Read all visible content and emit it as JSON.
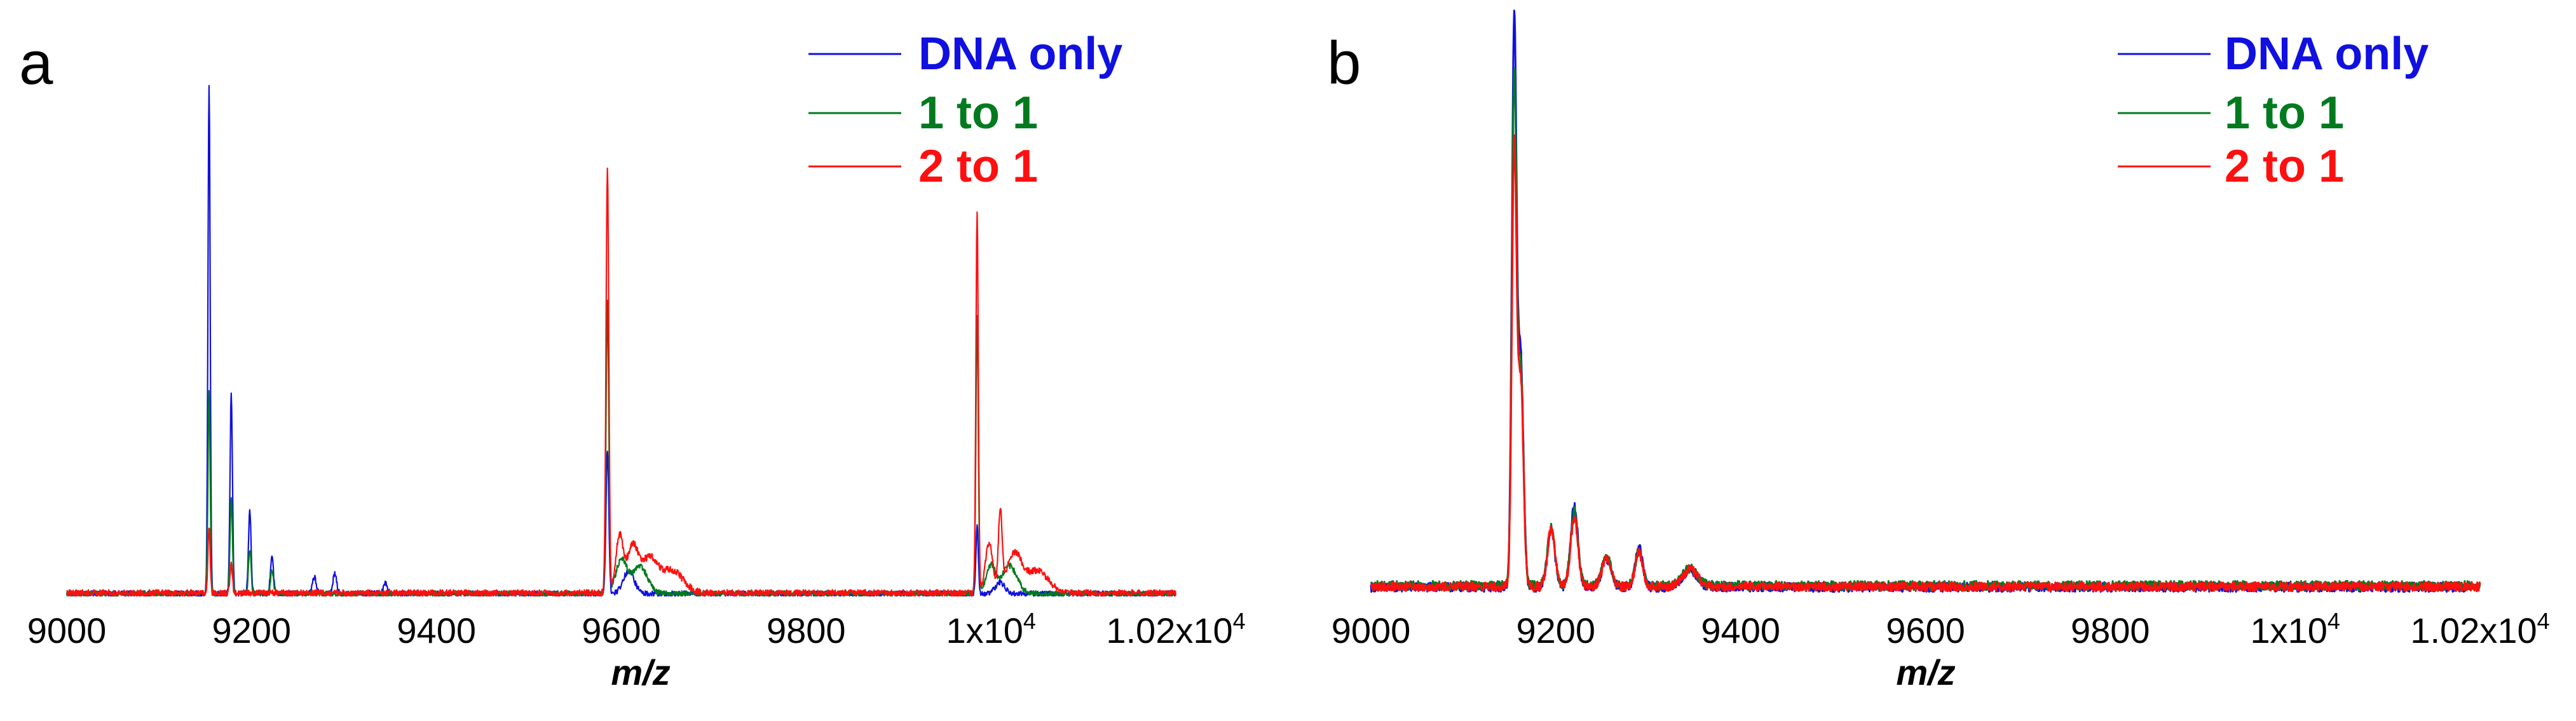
{
  "colors": {
    "DNA only": "#1010e0",
    "1 to 1": "#007a1e",
    "2 to 1": "#ff1010"
  },
  "chart_data": [
    {
      "panel": "a",
      "type": "line",
      "xlabel": "m/z",
      "ylabel": "",
      "xlim": [
        9000,
        10200
      ],
      "ylim": [
        0,
        1
      ],
      "grid": false,
      "legend_position": "top-right",
      "x_ticks": [
        {
          "value": 9000,
          "label": "9000"
        },
        {
          "value": 9200,
          "label": "9200"
        },
        {
          "value": 9400,
          "label": "9400"
        },
        {
          "value": 9600,
          "label": "9600"
        },
        {
          "value": 9800,
          "label": "9800"
        },
        {
          "value": 10000,
          "label": "1x10",
          "sup": "4"
        },
        {
          "value": 10200,
          "label": "1.02x10",
          "sup": "4"
        }
      ],
      "series": [
        {
          "name": "DNA only",
          "baseline": 0.004,
          "noise": 0.005,
          "peaks": [
            [
              9154,
              0.91,
              1.2
            ],
            [
              9178,
              0.36,
              1.3
            ],
            [
              9198,
              0.15,
              1.4
            ],
            [
              9222,
              0.07,
              1.6
            ],
            [
              9268,
              0.03,
              2
            ],
            [
              9290,
              0.035,
              2
            ],
            [
              9345,
              0.02,
              2
            ],
            [
              9585,
              0.26,
              1.5
            ],
            [
              9608,
              0.04,
              6
            ],
            [
              9985,
              0.12,
              1.3
            ],
            [
              10010,
              0.02,
              5
            ]
          ]
        },
        {
          "name": "1 to 1",
          "baseline": 0.004,
          "noise": 0.005,
          "peaks": [
            [
              9154,
              0.36,
              1.2
            ],
            [
              9178,
              0.17,
              1.3
            ],
            [
              9198,
              0.08,
              1.4
            ],
            [
              9222,
              0.04,
              1.6
            ],
            [
              9585,
              0.52,
              1.5
            ],
            [
              9600,
              0.06,
              6
            ],
            [
              9620,
              0.05,
              8
            ],
            [
              9985,
              0.5,
              1.3
            ],
            [
              10000,
              0.05,
              5
            ],
            [
              10020,
              0.05,
              8
            ]
          ]
        },
        {
          "name": "2 to 1",
          "baseline": 0.005,
          "noise": 0.006,
          "peaks": [
            [
              9154,
              0.12,
              1.2
            ],
            [
              9178,
              0.05,
              1.3
            ],
            [
              9585,
              0.76,
              1.5
            ],
            [
              9598,
              0.1,
              4
            ],
            [
              9612,
              0.08,
              6
            ],
            [
              9630,
              0.06,
              9
            ],
            [
              9655,
              0.04,
              12
            ],
            [
              9985,
              0.68,
              1.3
            ],
            [
              9998,
              0.09,
              4
            ],
            [
              10010,
              0.14,
              2
            ],
            [
              10025,
              0.07,
              8
            ],
            [
              10050,
              0.04,
              12
            ]
          ]
        }
      ]
    },
    {
      "panel": "b",
      "type": "line",
      "xlabel": "m/z",
      "ylabel": "",
      "xlim": [
        9000,
        10200
      ],
      "ylim": [
        0,
        1
      ],
      "grid": false,
      "legend_position": "top-right",
      "x_ticks": [
        {
          "value": 9000,
          "label": "9000"
        },
        {
          "value": 9200,
          "label": "9200"
        },
        {
          "value": 9400,
          "label": "9400"
        },
        {
          "value": 9600,
          "label": "9600"
        },
        {
          "value": 9800,
          "label": "9800"
        },
        {
          "value": 10000,
          "label": "1x10",
          "sup": "4"
        },
        {
          "value": 10200,
          "label": "1.02x10",
          "sup": "4"
        }
      ],
      "series": [
        {
          "name": "DNA only",
          "baseline": 0.015,
          "noise": 0.008,
          "peaks": [
            [
              9155,
              0.98,
              2.5
            ],
            [
              9162,
              0.4,
              3
            ],
            [
              9195,
              0.1,
              4
            ],
            [
              9220,
              0.14,
              4
            ],
            [
              9255,
              0.05,
              5
            ],
            [
              9290,
              0.07,
              4
            ],
            [
              9345,
              0.03,
              8
            ]
          ]
        },
        {
          "name": "1 to 1",
          "baseline": 0.018,
          "noise": 0.008,
          "peaks": [
            [
              9155,
              0.88,
              2.5
            ],
            [
              9162,
              0.38,
              3
            ],
            [
              9195,
              0.1,
              4
            ],
            [
              9220,
              0.13,
              4
            ],
            [
              9255,
              0.05,
              5
            ],
            [
              9290,
              0.06,
              4
            ],
            [
              9345,
              0.03,
              8
            ]
          ]
        },
        {
          "name": "2 to 1",
          "baseline": 0.016,
          "noise": 0.008,
          "peaks": [
            [
              9155,
              0.76,
              2.5
            ],
            [
              9162,
              0.36,
              3
            ],
            [
              9195,
              0.1,
              4
            ],
            [
              9220,
              0.12,
              4
            ],
            [
              9255,
              0.05,
              5
            ],
            [
              9290,
              0.06,
              4
            ],
            [
              9345,
              0.03,
              8
            ]
          ]
        }
      ]
    }
  ]
}
